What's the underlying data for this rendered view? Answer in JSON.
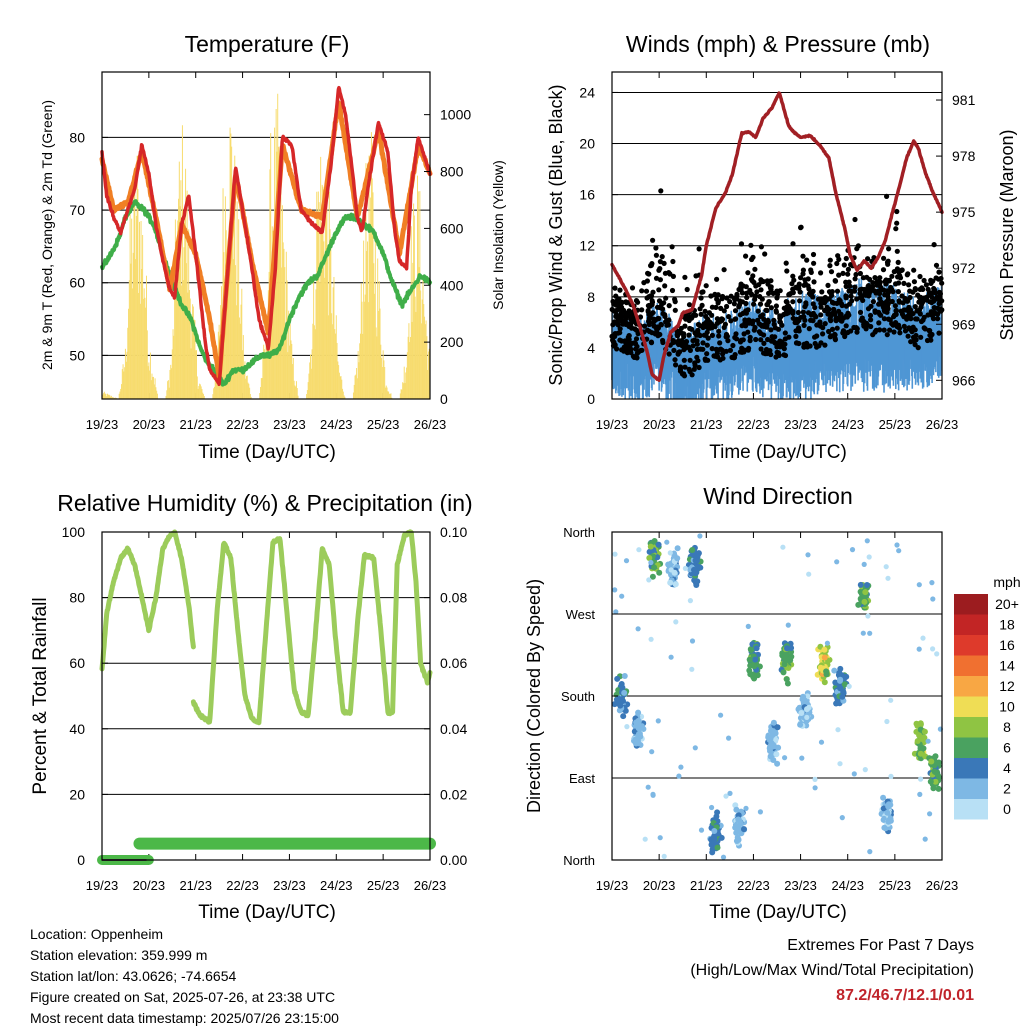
{
  "footer": {
    "location": "Location: Oppenheim",
    "elevation": "Station elevation: 359.999 m",
    "latlon": "Station lat/lon: 43.0626; -74.6654",
    "created": "Figure created on Sat, 2025-07-26, at 23:38 UTC",
    "latest": "Most recent data timestamp: 2025/07/26 23:15:00"
  },
  "extremes": {
    "title": "Extremes For Past 7 Days",
    "subtitle": "(High/Low/Max Wind/Total Precipitation)",
    "values": "87.2/46.7/12.1/0.01"
  },
  "colors": {
    "temp2m": "#d62728",
    "temp9m": "#f07f24",
    "dewpoint": "#3fae49",
    "solar": "#f7dc6f",
    "gust": "#000000",
    "wind": "#4f96d4",
    "pressure": "#a11f24",
    "rh": "#9ccc5b",
    "precip": "#4cb848",
    "extremes": "#c0242b"
  },
  "chart_data": [
    {
      "id": "temperature",
      "type": "line",
      "title": "Temperature (F)",
      "xlabel": "Time (Day/UTC)",
      "ylabel": "2m & 9m T (Red, Orange) & 2m Td (Green)",
      "ylabel_right": "Solar Insolation (Yellow)",
      "x_ticks": [
        "19/23",
        "20/23",
        "21/23",
        "22/23",
        "23/23",
        "24/23",
        "25/23",
        "26/23"
      ],
      "xlim": [
        0,
        7
      ],
      "ylim": [
        44,
        89
      ],
      "y_ticks": [
        50,
        60,
        70,
        80
      ],
      "ylim_right": [
        0,
        1150
      ],
      "y_ticks_right": [
        0,
        200,
        400,
        600,
        800,
        1000
      ],
      "grid": true,
      "series": [
        {
          "key": "temp2m",
          "x": [
            0,
            0.1,
            0.25,
            0.4,
            0.55,
            0.7,
            0.85,
            1.0,
            1.15,
            1.3,
            1.45,
            1.55,
            1.7,
            1.85,
            2.0,
            2.1,
            2.2,
            2.3,
            2.5,
            2.7,
            2.85,
            3.0,
            3.2,
            3.35,
            3.55,
            3.7,
            3.85,
            4.05,
            4.25,
            4.5,
            4.7,
            4.9,
            5.05,
            5.2,
            5.35,
            5.45,
            5.55,
            5.7,
            5.9,
            6.1,
            6.25,
            6.35,
            6.5,
            6.6,
            6.75,
            6.85,
            7.0
          ],
          "values": [
            78,
            72,
            69,
            67,
            70,
            73,
            79,
            75,
            68,
            63,
            59,
            58,
            68,
            72,
            64,
            58,
            52,
            48,
            46,
            63,
            76,
            70,
            62,
            55,
            51,
            62,
            80,
            79,
            70,
            68,
            67,
            77,
            87,
            83,
            75,
            69,
            67,
            74,
            82,
            78,
            67,
            63,
            62,
            73,
            80,
            78,
            75
          ]
        },
        {
          "key": "temp9m",
          "x": [
            0,
            0.25,
            0.55,
            0.85,
            1.15,
            1.45,
            1.7,
            2.0,
            2.3,
            2.5,
            2.85,
            3.2,
            3.55,
            3.85,
            4.25,
            4.7,
            5.05,
            5.45,
            5.9,
            6.35,
            6.75,
            7.0
          ],
          "values": [
            77,
            70,
            71,
            78,
            69,
            59,
            68,
            64,
            55,
            47,
            75,
            63,
            53,
            79,
            70,
            69,
            85,
            69,
            81,
            64,
            79,
            75
          ]
        },
        {
          "key": "dewpoint",
          "x": [
            0,
            0.2,
            0.35,
            0.5,
            0.7,
            0.9,
            1.1,
            1.3,
            1.5,
            1.7,
            1.9,
            2.1,
            2.25,
            2.4,
            2.6,
            2.8,
            3.0,
            3.2,
            3.4,
            3.6,
            3.8,
            4.0,
            4.2,
            4.4,
            4.6,
            4.8,
            5.0,
            5.2,
            5.4,
            5.6,
            5.8,
            6.0,
            6.2,
            6.4,
            6.6,
            6.8,
            7.0
          ],
          "values": [
            62,
            64,
            66,
            69,
            71,
            70,
            68,
            64,
            60,
            57,
            55,
            51,
            49,
            48,
            46,
            48,
            48,
            49,
            50,
            50,
            51,
            55,
            58,
            60,
            61,
            64,
            67,
            69,
            69,
            68,
            67,
            64,
            60,
            57,
            59,
            61,
            60
          ]
        },
        {
          "key": "solar",
          "x": [
            0,
            0.35,
            0.5,
            0.6,
            0.75,
            0.9,
            1.0,
            1.2,
            1.35,
            1.5,
            1.6,
            1.75,
            1.9,
            2.05,
            2.2,
            2.35,
            2.5,
            2.6,
            2.75,
            2.9,
            3.05,
            3.2,
            3.35,
            3.5,
            3.6,
            3.75,
            3.9,
            4.05,
            4.2,
            4.35,
            4.5,
            4.6,
            4.75,
            4.9,
            5.05,
            5.2,
            5.35,
            5.5,
            5.6,
            5.75,
            5.9,
            6.05,
            6.2,
            6.35,
            6.5,
            6.6,
            6.75,
            6.9,
            7.0
          ],
          "values": [
            30,
            0,
            200,
            700,
            950,
            650,
            250,
            0,
            0,
            200,
            850,
            1050,
            500,
            100,
            0,
            0,
            300,
            900,
            1150,
            700,
            150,
            0,
            0,
            300,
            950,
            1080,
            650,
            200,
            0,
            0,
            350,
            950,
            1000,
            600,
            150,
            0,
            0,
            250,
            800,
            950,
            500,
            100,
            0,
            0,
            200,
            650,
            850,
            400,
            150
          ]
        }
      ]
    },
    {
      "id": "winds",
      "type": "scatter",
      "title": "Winds (mph) & Pressure (mb)",
      "xlabel": "Time (Day/UTC)",
      "ylabel": "Sonic/Prop Wind & Gust (Blue, Black)",
      "ylabel_right": "Station Pressure (Maroon)",
      "x_ticks": [
        "19/23",
        "20/23",
        "21/23",
        "22/23",
        "23/23",
        "24/23",
        "25/23",
        "26/23"
      ],
      "xlim": [
        0,
        7
      ],
      "ylim": [
        0,
        25.6
      ],
      "y_ticks": [
        0,
        4,
        8,
        12,
        16,
        20,
        24
      ],
      "ylim_right": [
        965.0,
        982.5
      ],
      "y_ticks_right": [
        966,
        969,
        972,
        975,
        978,
        981
      ],
      "grid": true,
      "series": [
        {
          "key": "pressure",
          "x": [
            0,
            0.15,
            0.3,
            0.45,
            0.6,
            0.75,
            0.85,
            1.0,
            1.1,
            1.25,
            1.4,
            1.5,
            1.7,
            1.9,
            2.0,
            2.2,
            2.4,
            2.55,
            2.75,
            2.9,
            3.05,
            3.2,
            3.4,
            3.55,
            3.75,
            3.85,
            4.0,
            4.2,
            4.4,
            4.6,
            4.75,
            4.95,
            5.05,
            5.2,
            5.35,
            5.5,
            5.65,
            5.8,
            5.95,
            6.1,
            6.25,
            6.4,
            6.5,
            6.65,
            6.8,
            6.95,
            7.0
          ],
          "values": [
            972.2,
            971.5,
            970.8,
            970.0,
            968.8,
            967.5,
            966.3,
            966.0,
            967.3,
            968.6,
            968.9,
            969.6,
            969.8,
            971.6,
            973.2,
            975.2,
            976.0,
            977.0,
            979.2,
            979.3,
            979.0,
            980.0,
            980.6,
            981.4,
            979.6,
            979.3,
            979.0,
            979.1,
            978.6,
            977.9,
            976.0,
            974.0,
            972.7,
            971.9,
            972.4,
            972.0,
            972.6,
            973.5,
            975.0,
            976.4,
            977.9,
            978.8,
            978.4,
            977.1,
            976.1,
            975.3,
            975.0
          ]
        },
        {
          "key": "wind_mean",
          "x": [
            0,
            0.5,
            1.0,
            1.5,
            2.0,
            2.5,
            3.0,
            3.5,
            4.0,
            4.5,
            5.0,
            5.5,
            6.0,
            6.5,
            7.0
          ],
          "values": [
            5,
            4,
            5,
            3,
            4,
            4,
            5,
            4,
            4,
            5,
            5,
            5,
            5,
            5,
            6
          ]
        },
        {
          "key": "wind_peak",
          "x": [
            0,
            0.5,
            1.0,
            1.5,
            2.0,
            2.5,
            3.0,
            3.5,
            4.0,
            4.5,
            5.0,
            5.5,
            6.0,
            6.5,
            7.0
          ],
          "values": [
            8,
            6,
            8,
            5,
            7,
            7,
            8,
            7,
            9,
            8,
            9,
            10,
            9,
            8,
            9
          ]
        },
        {
          "key": "gust_mean",
          "x": [
            0,
            0.5,
            1.0,
            1.5,
            2.0,
            2.5,
            3.0,
            3.5,
            4.0,
            4.5,
            5.0,
            5.5,
            6.0,
            6.5,
            7.0
          ],
          "values": [
            7,
            6,
            8,
            4,
            6,
            6,
            7,
            6,
            7,
            7,
            8,
            8,
            8,
            7,
            8
          ]
        },
        {
          "key": "gust_peak",
          "x": [
            0,
            0.5,
            1.0,
            1.5,
            2.0,
            2.5,
            3.0,
            3.5,
            4.0,
            4.5,
            5.0,
            5.5,
            6.0,
            6.5,
            7.0
          ],
          "values": [
            12,
            10,
            24,
            12,
            17,
            12,
            20,
            16,
            19,
            14,
            18,
            14,
            20,
            12,
            14
          ]
        }
      ]
    },
    {
      "id": "humidity",
      "type": "line",
      "title": "Relative Humidity (%) & Precipitation (in)",
      "xlabel": "Time (Day/UTC)",
      "ylabel": "Percent & Total Rainfall",
      "x_ticks": [
        "19/23",
        "20/23",
        "21/23",
        "22/23",
        "23/23",
        "24/23",
        "25/23",
        "26/23"
      ],
      "xlim": [
        0,
        7
      ],
      "ylim": [
        0,
        100
      ],
      "y_ticks": [
        0,
        20,
        40,
        60,
        80,
        100
      ],
      "ylim_right": [
        0,
        0.1
      ],
      "y_ticks_right": [
        "0.00",
        "0.02",
        "0.04",
        "0.06",
        "0.08",
        "0.10"
      ],
      "grid": true,
      "series": [
        {
          "key": "rh_a",
          "x": [
            0,
            0.1,
            0.25,
            0.4,
            0.55,
            0.7,
            0.85,
            1.0,
            1.15,
            1.3,
            1.45,
            1.55,
            1.7,
            1.85,
            1.95
          ],
          "values": [
            58,
            75,
            85,
            92,
            95,
            90,
            80,
            70,
            80,
            95,
            99,
            100,
            92,
            78,
            65
          ]
        },
        {
          "key": "rh_b",
          "x": [
            1.95,
            2.1,
            2.3,
            2.45,
            2.6,
            2.75,
            2.9,
            3.05,
            3.2,
            3.35,
            3.5,
            3.65,
            3.8,
            3.95,
            4.1,
            4.25,
            4.4,
            4.55,
            4.7,
            4.85,
            5.0,
            5.15,
            5.3,
            5.45,
            5.6,
            5.8,
            5.95,
            6.1,
            6.2,
            6.3,
            6.45,
            6.6,
            6.7,
            6.8,
            6.95,
            7.0
          ],
          "values": [
            48,
            44,
            42,
            75,
            97,
            92,
            70,
            50,
            43,
            42,
            70,
            97,
            98,
            75,
            52,
            45,
            44,
            68,
            95,
            90,
            65,
            45,
            45,
            72,
            93,
            92,
            70,
            45,
            45,
            90,
            99,
            100,
            85,
            60,
            54,
            57
          ]
        },
        {
          "key": "precip_low",
          "x": [
            0,
            1.0
          ],
          "values": [
            0.0,
            0.0
          ]
        },
        {
          "key": "precip",
          "x": [
            0.8,
            7.0
          ],
          "values": [
            0.005,
            0.005
          ]
        }
      ]
    },
    {
      "id": "direction",
      "type": "scatter",
      "title": "Wind Direction",
      "xlabel": "Time (Day/UTC)",
      "ylabel": "Direction (Colored By Speed)",
      "x_ticks": [
        "19/23",
        "20/23",
        "21/23",
        "22/23",
        "23/23",
        "24/23",
        "25/23",
        "26/23"
      ],
      "xlim": [
        0,
        7
      ],
      "ylim": [
        0,
        360
      ],
      "y_ticks": [
        "North",
        "East",
        "South",
        "West",
        "North"
      ],
      "grid": true,
      "legend_title": "mph",
      "legend_labels": [
        "20+",
        "18",
        "16",
        "14",
        "12",
        "10",
        "8",
        "6",
        "4",
        "2",
        "0"
      ],
      "legend_colors": [
        "#9c1c1f",
        "#c22525",
        "#de3a2b",
        "#f07030",
        "#f8a744",
        "#efdd55",
        "#8fc443",
        "#4aa260",
        "#3a78b8",
        "#7eb8e4",
        "#b8e0f5"
      ],
      "clusters": [
        {
          "t": 0.2,
          "dir": 180,
          "speed": 4
        },
        {
          "t": 0.55,
          "dir": 140,
          "speed": 2
        },
        {
          "t": 0.9,
          "dir": 335,
          "speed": 6
        },
        {
          "t": 1.3,
          "dir": 320,
          "speed": 2
        },
        {
          "t": 1.75,
          "dir": 325,
          "speed": 4
        },
        {
          "t": 2.2,
          "dir": 30,
          "speed": 4
        },
        {
          "t": 2.7,
          "dir": 40,
          "speed": 2
        },
        {
          "t": 3.0,
          "dir": 220,
          "speed": 6
        },
        {
          "t": 3.4,
          "dir": 130,
          "speed": 2
        },
        {
          "t": 3.7,
          "dir": 220,
          "speed": 6
        },
        {
          "t": 4.1,
          "dir": 160,
          "speed": 2
        },
        {
          "t": 4.5,
          "dir": 215,
          "speed": 9
        },
        {
          "t": 4.85,
          "dir": 190,
          "speed": 4
        },
        {
          "t": 5.35,
          "dir": 290,
          "speed": 6
        },
        {
          "t": 5.85,
          "dir": 50,
          "speed": 2
        },
        {
          "t": 6.55,
          "dir": 130,
          "speed": 7
        },
        {
          "t": 6.85,
          "dir": 95,
          "speed": 6
        }
      ]
    }
  ]
}
